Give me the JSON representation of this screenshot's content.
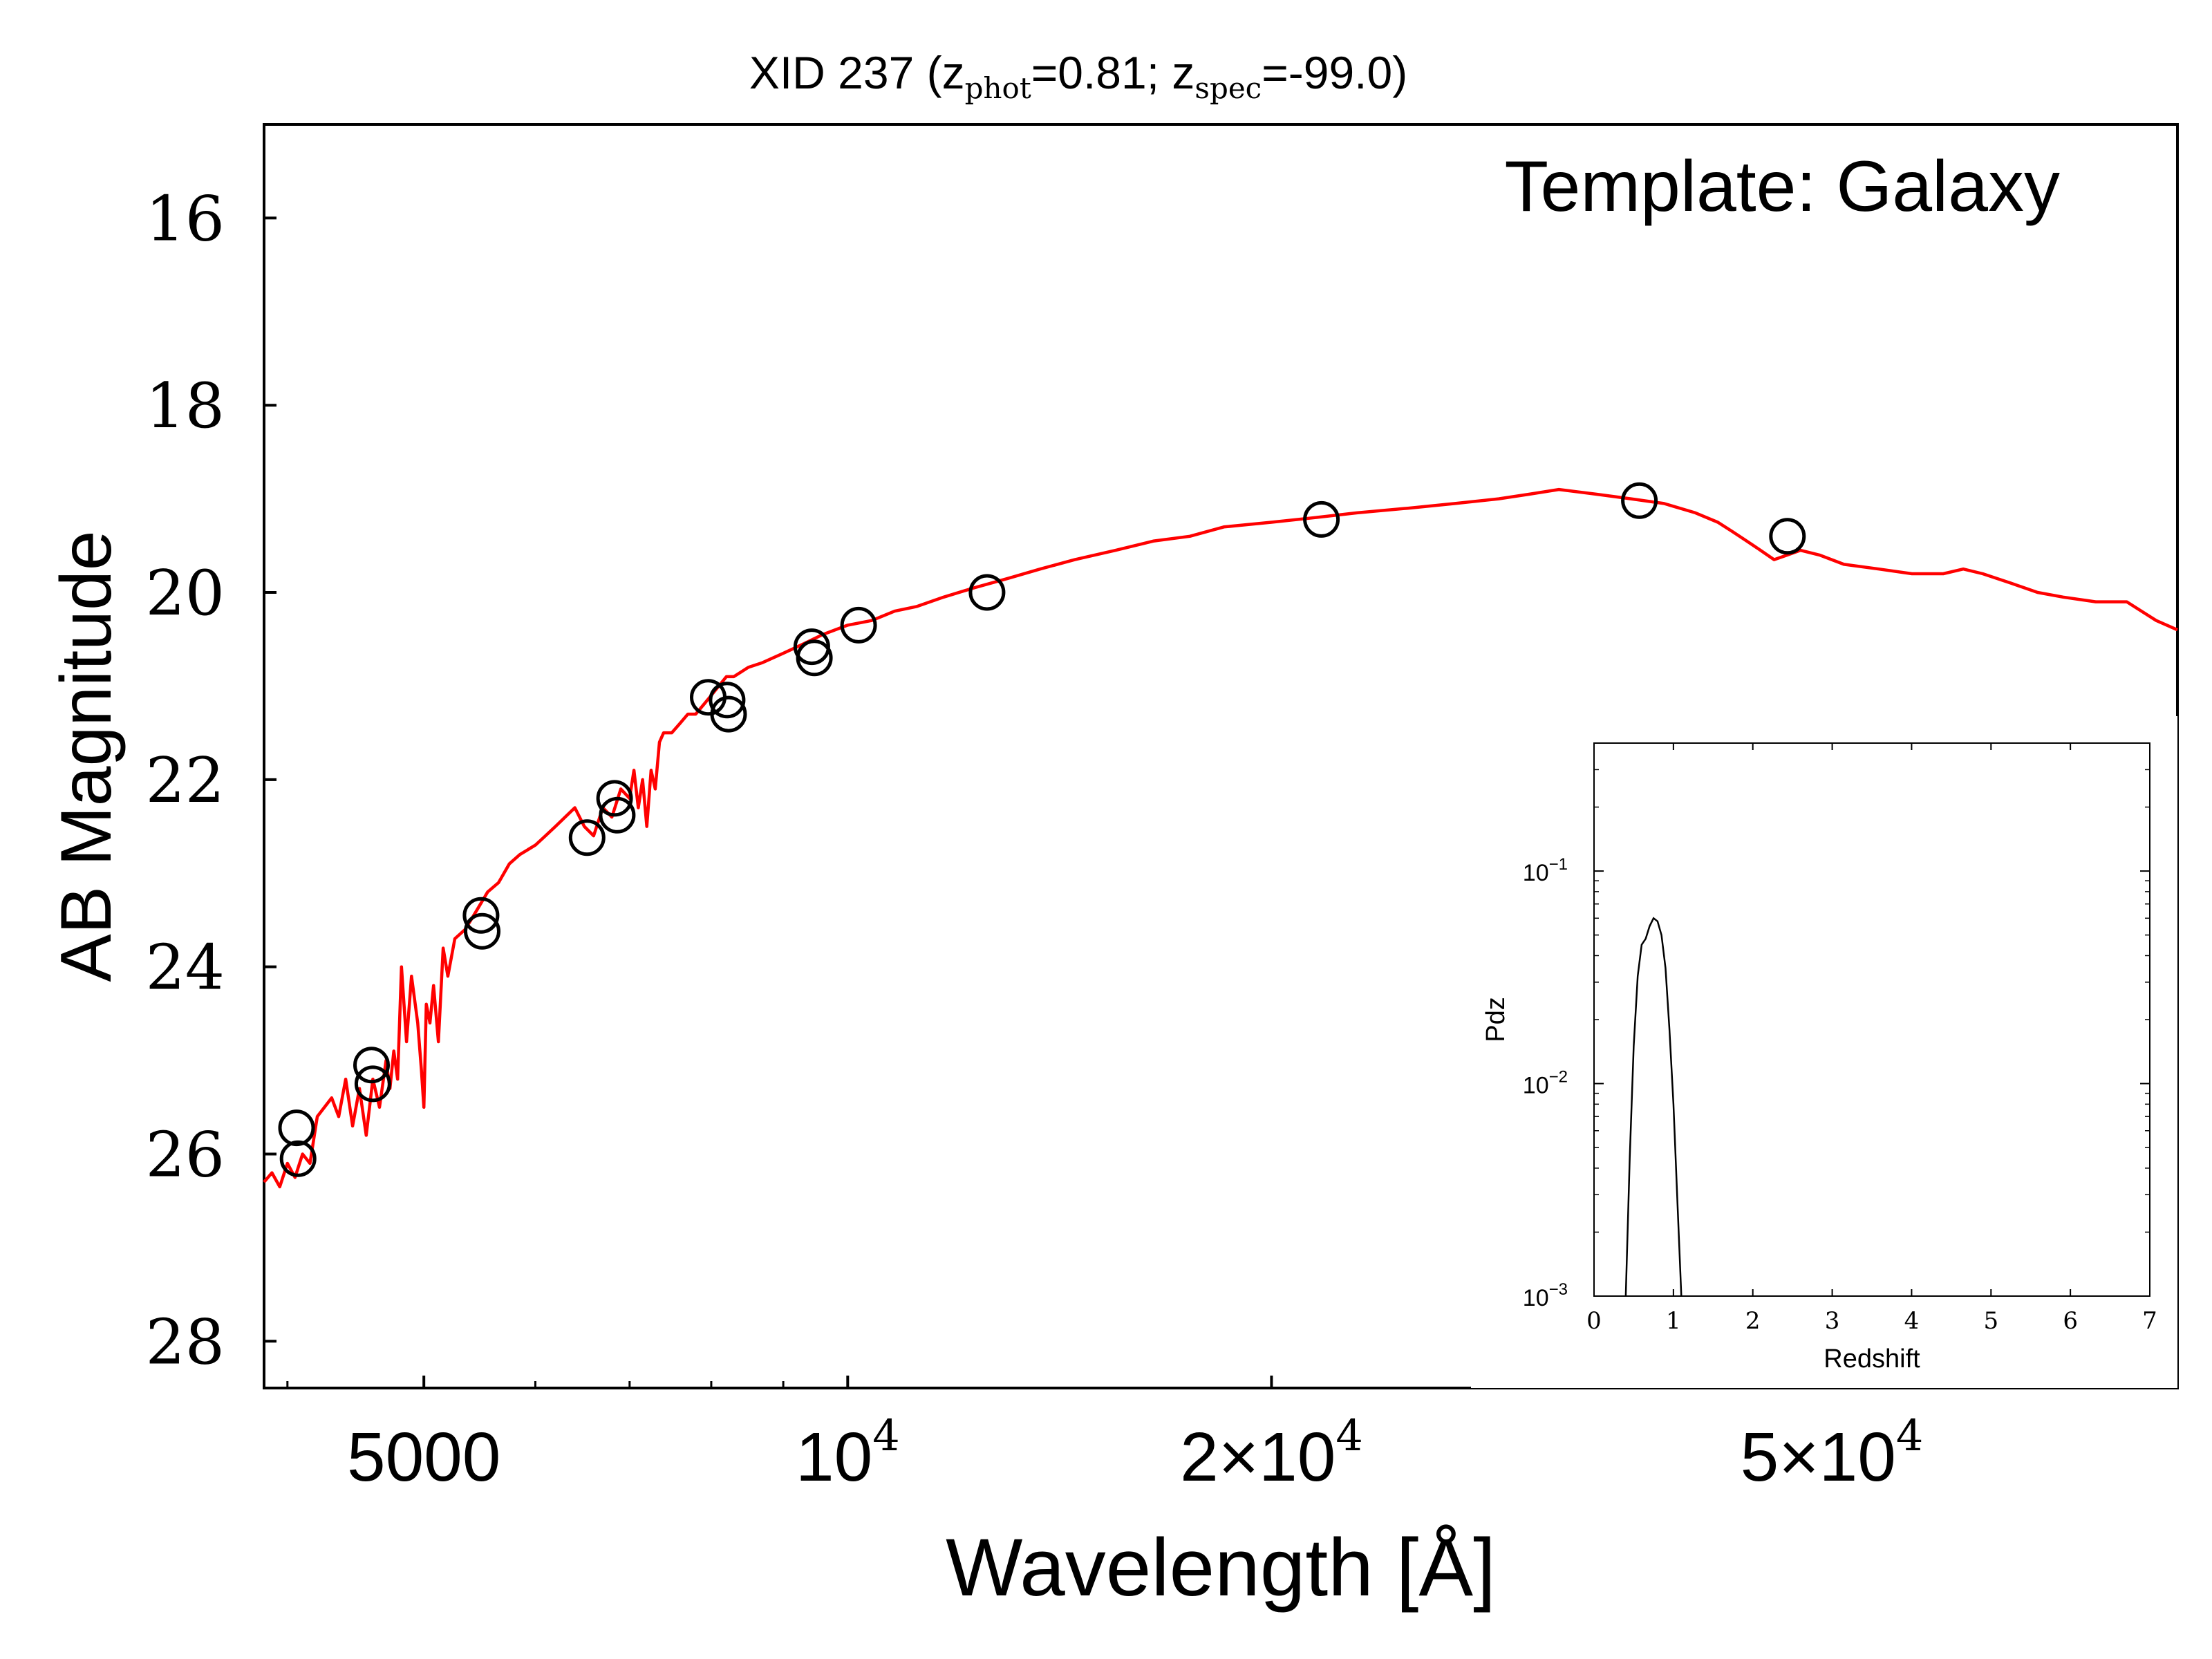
{
  "chart_data": [
    {
      "type": "line",
      "title": {
        "prefix": "XID 237 (z",
        "sub1": "phot",
        "mid": "=0.81; z",
        "sub2": "spec",
        "suffix": "=-99.0)"
      },
      "annotation": "Template: Galaxy",
      "xlabel": "Wavelength [Å]",
      "ylabel": "AB Magnitude",
      "xscale": "log",
      "xlim": [
        3850,
        88000
      ],
      "ylim": [
        28.5,
        15.0
      ],
      "y_inverted": true,
      "grid": false,
      "x_ticks": [
        {
          "value": 5000,
          "label": "5000"
        },
        {
          "value": 10000,
          "label": "10",
          "sup": "4"
        },
        {
          "value": 20000,
          "label": "2×10",
          "sup": "4"
        },
        {
          "value": 50000,
          "label": "5×10",
          "sup": "4"
        }
      ],
      "x_minor_ticks": [
        4000,
        6000,
        7000,
        8000,
        9000,
        30000,
        40000,
        60000,
        70000,
        80000
      ],
      "y_ticks": [
        {
          "value": 16,
          "label": "16"
        },
        {
          "value": 18,
          "label": "18"
        },
        {
          "value": 20,
          "label": "20"
        },
        {
          "value": 22,
          "label": "22"
        },
        {
          "value": 24,
          "label": "24"
        },
        {
          "value": 26,
          "label": "26"
        },
        {
          "value": 28,
          "label": "28"
        }
      ],
      "series": [
        {
          "kind": "template_line",
          "color": "#ff0000",
          "x": [
            3850,
            3900,
            3950,
            4000,
            4050,
            4100,
            4150,
            4200,
            4250,
            4300,
            4350,
            4400,
            4450,
            4500,
            4550,
            4600,
            4650,
            4700,
            4730,
            4760,
            4790,
            4820,
            4860,
            4900,
            4950,
            4980,
            5000,
            5020,
            5050,
            5080,
            5120,
            5160,
            5200,
            5260,
            5350,
            5450,
            5550,
            5650,
            5750,
            5850,
            6000,
            6100,
            6200,
            6300,
            6400,
            6500,
            6600,
            6700,
            6800,
            6900,
            7000,
            7050,
            7100,
            7150,
            7200,
            7250,
            7300,
            7350,
            7400,
            7500,
            7600,
            7700,
            7800,
            7900,
            8000,
            8100,
            8200,
            8300,
            8400,
            8500,
            8700,
            9000,
            9300,
            9600,
            10000,
            10400,
            10800,
            11200,
            11700,
            12300,
            13000,
            13700,
            14500,
            15500,
            16500,
            17500,
            18500,
            20000,
            21500,
            23000,
            25000,
            27000,
            29000,
            30500,
            32000,
            34000,
            36000,
            38000,
            40000,
            41500,
            42500,
            43500,
            44500,
            45500,
            46500,
            47500,
            49000,
            51000,
            54000,
            57000,
            60000,
            62000,
            64000,
            67000,
            70000,
            73000,
            77000,
            81000,
            85000,
            88000
          ],
          "y": [
            26.3,
            26.2,
            26.35,
            26.1,
            26.25,
            26.0,
            26.1,
            25.6,
            25.5,
            25.4,
            25.6,
            25.2,
            25.7,
            25.3,
            25.8,
            25.2,
            25.5,
            25.0,
            25.3,
            24.9,
            25.2,
            24.0,
            24.8,
            24.1,
            24.6,
            25.1,
            25.5,
            24.4,
            24.6,
            24.2,
            24.8,
            23.8,
            24.1,
            23.7,
            23.6,
            23.4,
            23.2,
            23.1,
            22.9,
            22.8,
            22.7,
            22.6,
            22.5,
            22.4,
            22.3,
            22.5,
            22.6,
            22.3,
            22.4,
            22.1,
            22.2,
            21.9,
            22.3,
            22.0,
            22.5,
            21.9,
            22.1,
            21.6,
            21.5,
            21.5,
            21.4,
            21.3,
            21.3,
            21.2,
            21.1,
            21.0,
            20.9,
            20.9,
            20.85,
            20.8,
            20.75,
            20.65,
            20.55,
            20.45,
            20.35,
            20.3,
            20.2,
            20.15,
            20.05,
            19.95,
            19.85,
            19.75,
            19.65,
            19.55,
            19.45,
            19.4,
            19.3,
            19.25,
            19.2,
            19.15,
            19.1,
            19.05,
            19.0,
            18.95,
            18.9,
            18.95,
            19.0,
            19.05,
            19.15,
            19.25,
            19.35,
            19.45,
            19.55,
            19.65,
            19.6,
            19.55,
            19.6,
            19.7,
            19.75,
            19.8,
            19.8,
            19.75,
            19.8,
            19.9,
            20.0,
            20.05,
            20.1,
            20.1,
            20.3,
            20.4
          ]
        },
        {
          "kind": "photometry_circles",
          "color": "#000000",
          "points": [
            {
              "x": 4060,
              "y": 25.72
            },
            {
              "x": 4070,
              "y": 26.05
            },
            {
              "x": 4590,
              "y": 25.05
            },
            {
              "x": 4600,
              "y": 25.25
            },
            {
              "x": 5490,
              "y": 23.45
            },
            {
              "x": 5500,
              "y": 23.62
            },
            {
              "x": 6530,
              "y": 22.62
            },
            {
              "x": 6830,
              "y": 22.2
            },
            {
              "x": 6860,
              "y": 22.38
            },
            {
              "x": 7960,
              "y": 21.12
            },
            {
              "x": 8210,
              "y": 21.15
            },
            {
              "x": 8230,
              "y": 21.3
            },
            {
              "x": 9430,
              "y": 20.58
            },
            {
              "x": 9470,
              "y": 20.7
            },
            {
              "x": 10180,
              "y": 20.35
            },
            {
              "x": 12560,
              "y": 20.0
            },
            {
              "x": 21700,
              "y": 19.22
            },
            {
              "x": 36500,
              "y": 19.02
            },
            {
              "x": 46500,
              "y": 19.4
            }
          ]
        }
      ]
    },
    {
      "type": "line",
      "role": "inset",
      "xlabel": "Redshift",
      "ylabel": "Pdz",
      "yscale": "log",
      "xlim": [
        0,
        7
      ],
      "ylim": [
        0.001,
        0.4
      ],
      "x_ticks": [
        "0",
        "1",
        "2",
        "3",
        "4",
        "5",
        "6",
        "7"
      ],
      "y_ticks": [
        {
          "value": 0.1,
          "base": "10",
          "exp": "−1"
        },
        {
          "value": 0.01,
          "base": "10",
          "exp": "−2"
        },
        {
          "value": 0.001,
          "base": "10",
          "exp": "−3"
        }
      ],
      "series": [
        {
          "color": "#000000",
          "x": [
            0.4,
            0.45,
            0.5,
            0.55,
            0.6,
            0.65,
            0.7,
            0.75,
            0.8,
            0.85,
            0.9,
            0.95,
            1.0,
            1.05,
            1.1
          ],
          "y": [
            0.001,
            0.0045,
            0.015,
            0.032,
            0.045,
            0.048,
            0.055,
            0.06,
            0.058,
            0.05,
            0.035,
            0.018,
            0.008,
            0.0028,
            0.001
          ]
        }
      ]
    }
  ]
}
